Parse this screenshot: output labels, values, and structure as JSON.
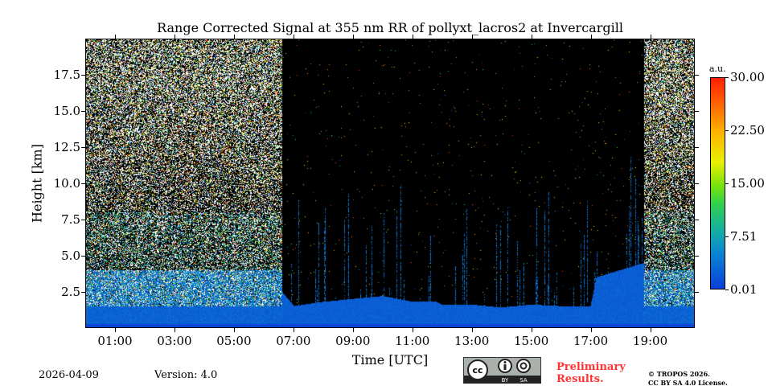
{
  "chart_data": {
    "type": "heatmap",
    "title": "Range Corrected Signal at 355 nm RR of pollyxt_lacros2 at Invercargill",
    "xlabel": "Time [UTC]",
    "ylabel": "Height [km]",
    "xlim_hours": [
      0,
      20.5
    ],
    "ylim_km": [
      0,
      20
    ],
    "xticks": [
      {
        "v": 1,
        "label": "01:00"
      },
      {
        "v": 3,
        "label": "03:00"
      },
      {
        "v": 5,
        "label": "05:00"
      },
      {
        "v": 7,
        "label": "07:00"
      },
      {
        "v": 9,
        "label": "09:00"
      },
      {
        "v": 11,
        "label": "11:00"
      },
      {
        "v": 13,
        "label": "13:00"
      },
      {
        "v": 15,
        "label": "15:00"
      },
      {
        "v": 17,
        "label": "17:00"
      },
      {
        "v": 19,
        "label": "19:00"
      }
    ],
    "yticks": [
      {
        "v": 2.5,
        "label": "2.5"
      },
      {
        "v": 5,
        "label": "5.0"
      },
      {
        "v": 7.5,
        "label": "7.5"
      },
      {
        "v": 10,
        "label": "10.0"
      },
      {
        "v": 12.5,
        "label": "12.5"
      },
      {
        "v": 15,
        "label": "15.0"
      },
      {
        "v": 17.5,
        "label": "17.5"
      }
    ],
    "colorbar": {
      "unit": "a.u.",
      "range": [
        0.01,
        30.0
      ],
      "ticks": [
        {
          "v": 30.0,
          "label": "30.00"
        },
        {
          "v": 22.5,
          "label": "22.50"
        },
        {
          "v": 15.0,
          "label": "15.00"
        },
        {
          "v": 7.51,
          "label": "7.51"
        },
        {
          "v": 0.01,
          "label": "0.01"
        }
      ]
    },
    "night_noisy_periods_hours": [
      [
        0,
        6.6
      ],
      [
        18.8,
        20.5
      ]
    ],
    "boundary_layer_top_km": {
      "hours": [
        6.6,
        7,
        8,
        9,
        10,
        11,
        11.8,
        12,
        13,
        14,
        15,
        16,
        17,
        17.2,
        18.8
      ],
      "km": [
        2.5,
        1.5,
        1.8,
        2,
        2.2,
        1.8,
        1.8,
        1.6,
        1.6,
        1.4,
        1.6,
        1.5,
        1.5,
        3.5,
        4.5
      ]
    }
  },
  "footer": {
    "date": "2026-04-09",
    "version": "Version: 4.0",
    "license_badge": {
      "by": "BY",
      "sa": "SA",
      "cc": "cc"
    },
    "preliminary": [
      "Preliminary",
      "Results."
    ],
    "copyright": [
      "© TROPOS 2026.",
      "CC BY SA 4.0 License."
    ]
  }
}
